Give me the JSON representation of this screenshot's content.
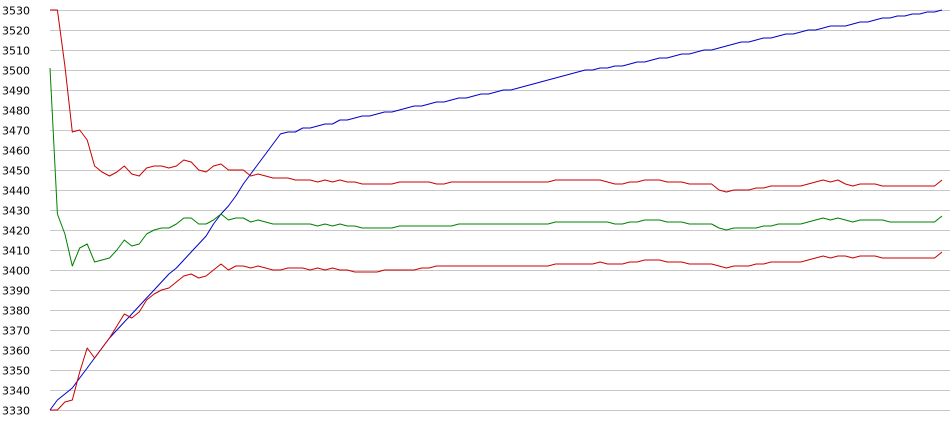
{
  "chart_data": {
    "type": "line",
    "title": "",
    "xlabel": "",
    "ylabel": "",
    "ylim": [
      3330,
      3530
    ],
    "y_ticks": [
      3330,
      3340,
      3350,
      3360,
      3370,
      3380,
      3390,
      3400,
      3410,
      3420,
      3430,
      3440,
      3450,
      3460,
      3470,
      3480,
      3490,
      3500,
      3510,
      3520,
      3530
    ],
    "y_tick_labels": [
      "3330",
      "3340",
      "3350",
      "3360",
      "3370",
      "3380",
      "3390",
      "3400",
      "3410",
      "3420",
      "3430",
      "3440",
      "3450",
      "3460",
      "3470",
      "3480",
      "3490",
      "3500",
      "3510",
      "3520",
      "3530"
    ],
    "grid": true,
    "legend": "none",
    "x": [
      0,
      1,
      2,
      3,
      4,
      5,
      6,
      7,
      8,
      9,
      10,
      11,
      12,
      13,
      14,
      15,
      16,
      17,
      18,
      19,
      20,
      21,
      22,
      23,
      24,
      25,
      26,
      27,
      28,
      29,
      30,
      31,
      32,
      33,
      34,
      35,
      36,
      37,
      38,
      39,
      40,
      41,
      42,
      43,
      44,
      45,
      46,
      47,
      48,
      49,
      50,
      51,
      52,
      53,
      54,
      55,
      56,
      57,
      58,
      59,
      60,
      61,
      62,
      63,
      64,
      65,
      66,
      67,
      68,
      69,
      70,
      71,
      72,
      73,
      74,
      75,
      76,
      77,
      78,
      79,
      80,
      81,
      82,
      83,
      84,
      85,
      86,
      87,
      88,
      89,
      90,
      91,
      92,
      93,
      94,
      95,
      96,
      97,
      98,
      99,
      100,
      101,
      102,
      103,
      104,
      105,
      106,
      107,
      108,
      109,
      110,
      111,
      112,
      113,
      114,
      115,
      116,
      117,
      118,
      119,
      120
    ],
    "series": [
      {
        "color": "#0000cc",
        "values": [
          3330,
          3335,
          3338,
          3341,
          3346,
          3351,
          3356,
          3361,
          3366,
          3370,
          3374,
          3378,
          3382,
          3386,
          3390,
          3394,
          3398,
          3401,
          3405,
          3409,
          3413,
          3417,
          3423,
          3428,
          3432,
          3437,
          3443,
          3448,
          3453,
          3458,
          3463,
          3468,
          3469,
          3469,
          3471,
          3471,
          3472,
          3473,
          3473,
          3475,
          3475,
          3476,
          3477,
          3477,
          3478,
          3479,
          3479,
          3480,
          3481,
          3482,
          3482,
          3483,
          3484,
          3484,
          3485,
          3486,
          3486,
          3487,
          3488,
          3488,
          3489,
          3490,
          3490,
          3491,
          3492,
          3493,
          3494,
          3495,
          3496,
          3497,
          3498,
          3499,
          3500,
          3500,
          3501,
          3501,
          3502,
          3502,
          3503,
          3504,
          3504,
          3505,
          3506,
          3506,
          3507,
          3508,
          3508,
          3509,
          3510,
          3510,
          3511,
          3512,
          3513,
          3514,
          3514,
          3515,
          3516,
          3516,
          3517,
          3518,
          3518,
          3519,
          3520,
          3520,
          3521,
          3522,
          3522,
          3522,
          3523,
          3524,
          3524,
          3525,
          3526,
          3526,
          3527,
          3527,
          3528,
          3528,
          3529,
          3529,
          3530
        ]
      },
      {
        "color": "#cc0000",
        "values": [
          3530,
          3530,
          3502,
          3469,
          3470,
          3465,
          3452,
          3449,
          3447,
          3449,
          3452,
          3448,
          3447,
          3451,
          3452,
          3452,
          3451,
          3452,
          3455,
          3454,
          3450,
          3449,
          3452,
          3453,
          3450,
          3450,
          3450,
          3447,
          3448,
          3447,
          3446,
          3446,
          3446,
          3445,
          3445,
          3445,
          3444,
          3445,
          3444,
          3445,
          3444,
          3444,
          3443,
          3443,
          3443,
          3443,
          3443,
          3444,
          3444,
          3444,
          3444,
          3444,
          3443,
          3443,
          3444,
          3444,
          3444,
          3444,
          3444,
          3444,
          3444,
          3444,
          3444,
          3444,
          3444,
          3444,
          3444,
          3444,
          3445,
          3445,
          3445,
          3445,
          3445,
          3445,
          3445,
          3444,
          3443,
          3443,
          3444,
          3444,
          3445,
          3445,
          3445,
          3444,
          3444,
          3444,
          3443,
          3443,
          3443,
          3443,
          3440,
          3439,
          3440,
          3440,
          3440,
          3441,
          3441,
          3442,
          3442,
          3442,
          3442,
          3442,
          3443,
          3444,
          3445,
          3444,
          3445,
          3443,
          3442,
          3443,
          3443,
          3443,
          3442,
          3442,
          3442,
          3442,
          3442,
          3442,
          3442,
          3442,
          3445
        ]
      },
      {
        "color": "#008000",
        "values": [
          3501,
          3428,
          3418,
          3402,
          3411,
          3413,
          3404,
          3405,
          3406,
          3410,
          3415,
          3412,
          3413,
          3418,
          3420,
          3421,
          3421,
          3423,
          3426,
          3426,
          3423,
          3423,
          3425,
          3428,
          3425,
          3426,
          3426,
          3424,
          3425,
          3424,
          3423,
          3423,
          3423,
          3423,
          3423,
          3423,
          3422,
          3423,
          3422,
          3423,
          3422,
          3422,
          3421,
          3421,
          3421,
          3421,
          3421,
          3422,
          3422,
          3422,
          3422,
          3422,
          3422,
          3422,
          3422,
          3423,
          3423,
          3423,
          3423,
          3423,
          3423,
          3423,
          3423,
          3423,
          3423,
          3423,
          3423,
          3423,
          3424,
          3424,
          3424,
          3424,
          3424,
          3424,
          3424,
          3424,
          3423,
          3423,
          3424,
          3424,
          3425,
          3425,
          3425,
          3424,
          3424,
          3424,
          3423,
          3423,
          3423,
          3423,
          3421,
          3420,
          3421,
          3421,
          3421,
          3421,
          3422,
          3422,
          3423,
          3423,
          3423,
          3423,
          3424,
          3425,
          3426,
          3425,
          3426,
          3425,
          3424,
          3425,
          3425,
          3425,
          3425,
          3424,
          3424,
          3424,
          3424,
          3424,
          3424,
          3424,
          3427
        ]
      },
      {
        "color": "#cc0000",
        "values": [
          3330,
          3330,
          3334,
          3335,
          3349,
          3361,
          3356,
          3361,
          3366,
          3372,
          3378,
          3376,
          3379,
          3385,
          3388,
          3390,
          3391,
          3394,
          3397,
          3398,
          3396,
          3397,
          3400,
          3403,
          3400,
          3402,
          3402,
          3401,
          3402,
          3401,
          3400,
          3400,
          3401,
          3401,
          3401,
          3400,
          3401,
          3400,
          3401,
          3400,
          3400,
          3399,
          3399,
          3399,
          3399,
          3400,
          3400,
          3400,
          3400,
          3400,
          3401,
          3401,
          3402,
          3402,
          3402,
          3402,
          3402,
          3402,
          3402,
          3402,
          3402,
          3402,
          3402,
          3402,
          3402,
          3402,
          3402,
          3402,
          3403,
          3403,
          3403,
          3403,
          3403,
          3403,
          3404,
          3403,
          3403,
          3403,
          3404,
          3404,
          3405,
          3405,
          3405,
          3404,
          3404,
          3404,
          3403,
          3403,
          3403,
          3403,
          3402,
          3401,
          3402,
          3402,
          3402,
          3403,
          3403,
          3404,
          3404,
          3404,
          3404,
          3404,
          3405,
          3406,
          3407,
          3406,
          3407,
          3407,
          3406,
          3407,
          3407,
          3407,
          3406,
          3406,
          3406,
          3406,
          3406,
          3406,
          3406,
          3406,
          3409
        ]
      }
    ]
  }
}
